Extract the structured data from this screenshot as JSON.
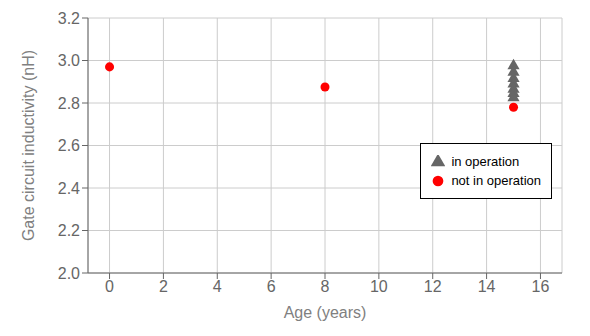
{
  "chart_data": {
    "type": "scatter",
    "xlabel": "Age (years)",
    "ylabel": "Gate circuit inductivity (nH)",
    "series": [
      {
        "name": "in operation",
        "color": "#666666",
        "marker": "triangle",
        "x": [
          15,
          15,
          15,
          15,
          15,
          15,
          15
        ],
        "values": [
          2.975,
          2.945,
          2.915,
          2.89,
          2.865,
          2.845,
          2.825
        ]
      },
      {
        "name": "not in operation",
        "color": "#ff0000",
        "marker": "circle",
        "x": [
          0,
          8,
          15
        ],
        "values": [
          2.97,
          2.875,
          2.78
        ]
      }
    ],
    "xlim": [
      -0.8,
      16.8
    ],
    "ylim": [
      2.0,
      3.2
    ],
    "xticks": [
      0,
      2,
      4,
      6,
      8,
      10,
      12,
      14,
      16
    ],
    "yticks": [
      {
        "value": 2.0,
        "label": "2.0"
      },
      {
        "value": 2.2,
        "label": "2.2"
      },
      {
        "value": 2.4,
        "label": "2.4"
      },
      {
        "value": 2.6,
        "label": "2.6"
      },
      {
        "value": 2.8,
        "label": "2.8"
      },
      {
        "value": 3.0,
        "label": "3.0"
      },
      {
        "value": 3.2,
        "label": "3.2"
      }
    ],
    "grid": true,
    "legend": "right"
  }
}
